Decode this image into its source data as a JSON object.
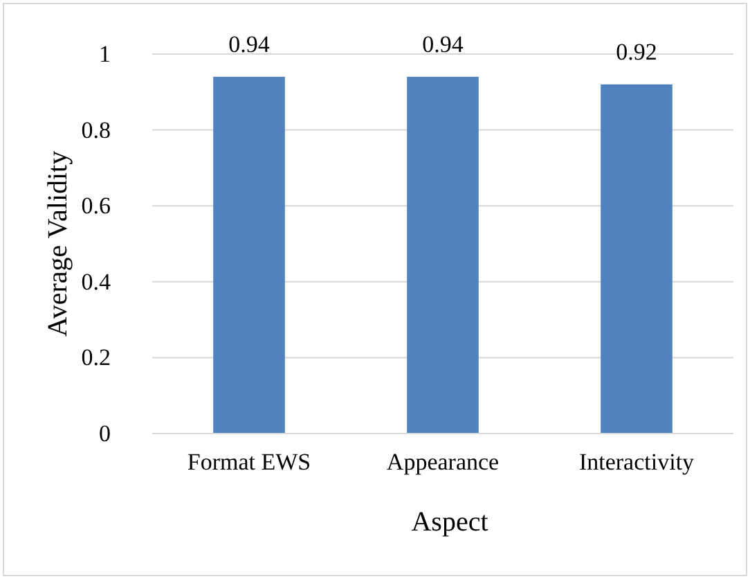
{
  "chart_data": {
    "type": "bar",
    "xlabel": "Aspect",
    "ylabel": "Average Validity",
    "categories": [
      "Format EWS",
      "Appearance",
      "Interactivity"
    ],
    "values": [
      0.94,
      0.94,
      0.92
    ],
    "color": "#4f81bd",
    "data_labels": true,
    "ylim": [
      0,
      1
    ],
    "yticks": [
      0,
      0.2,
      0.4,
      0.6,
      0.8,
      1
    ],
    "grid": "y"
  }
}
